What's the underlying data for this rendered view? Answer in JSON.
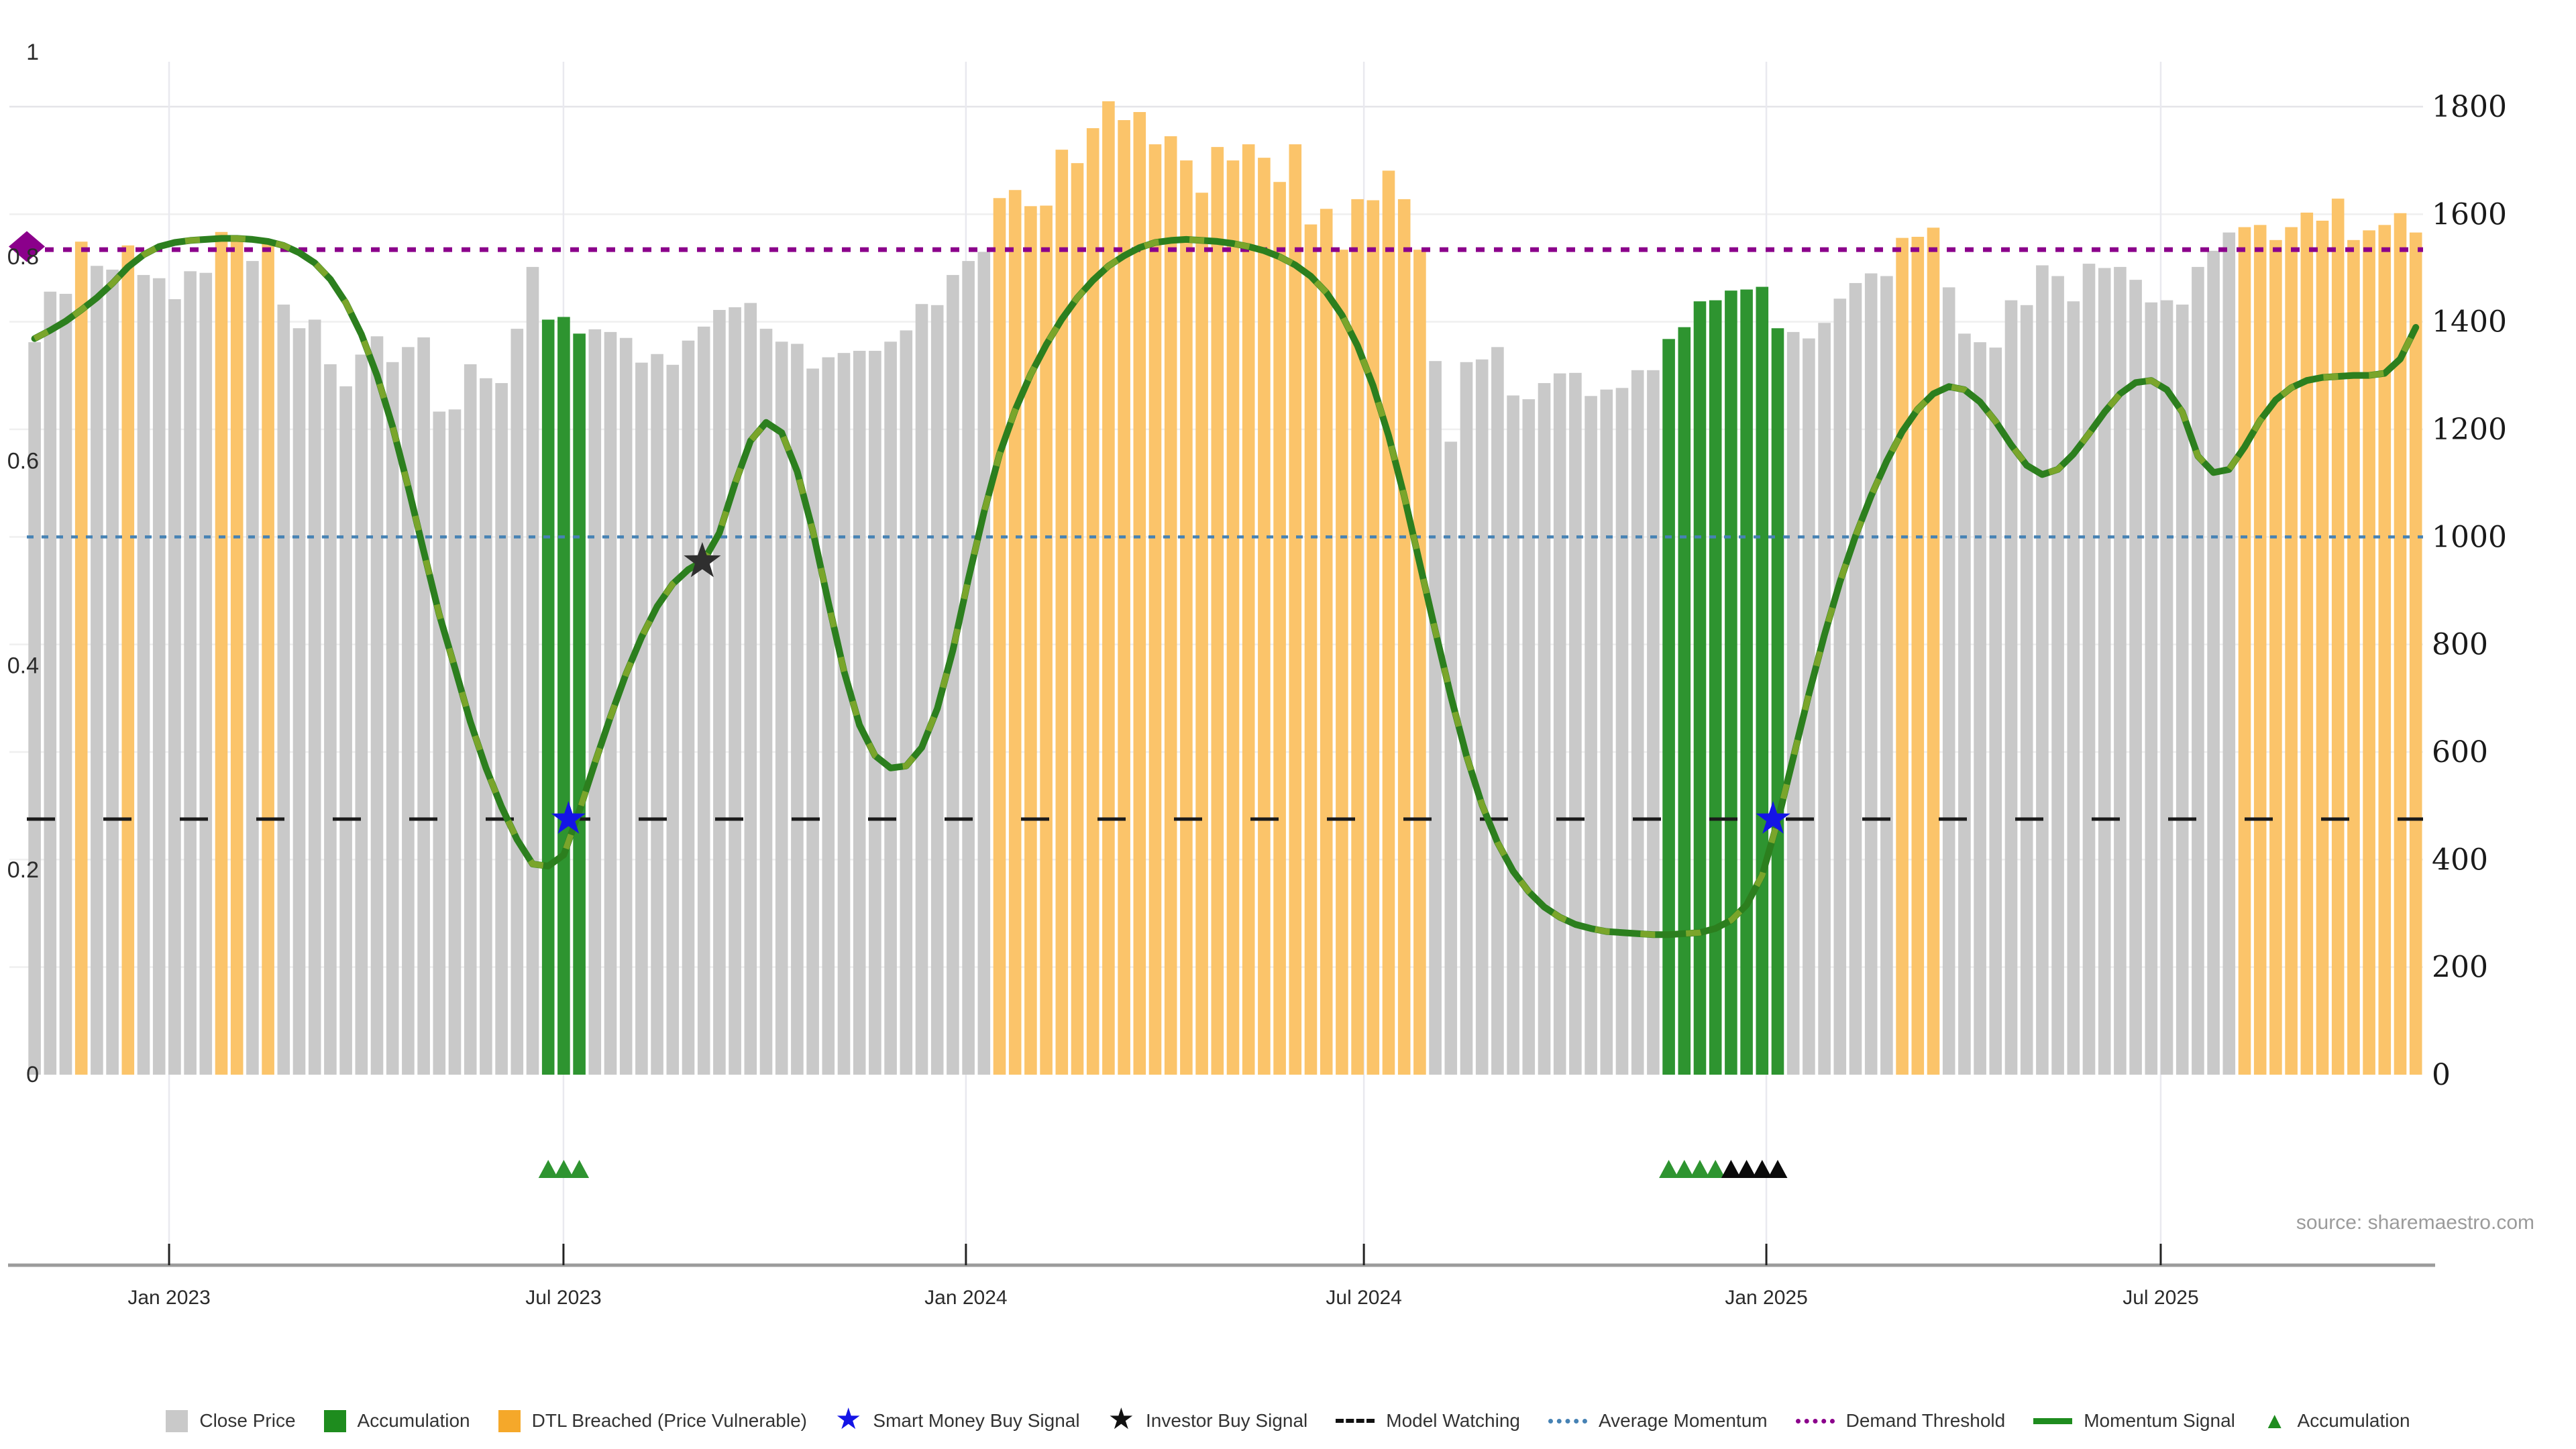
{
  "page": {
    "source_note": "source: sharemaestro.com"
  },
  "colors": {
    "close_price_bar": "#c9c9c9",
    "accumulation_bar": "#2e9430",
    "dtl_breached_bar": "#fbc46a",
    "momentum_base": "#2c7f1e",
    "momentum_dash": "#7aa52b",
    "demand_threshold": "#8b008b",
    "average_momentum": "#4682b4",
    "model_watching": "#1a1a1a",
    "smart_money_star": "#1414e6",
    "investor_star": "#2f2f2f",
    "legend_green": "#1e8c1e",
    "legend_orange": "#f5a82a",
    "grid_v": "#e9e9ef",
    "grid_h": "#efefef",
    "grid_h_top": "#e4e4e8",
    "axis_line": "#9b9b9b",
    "tick_mark": "#222222",
    "axis_text": "#2b2b2b",
    "source_text": "#9b9b9b"
  },
  "legend": {
    "items": [
      {
        "glyph": "square",
        "color": "#c9c9c9",
        "label": "Close Price"
      },
      {
        "glyph": "square",
        "color": "#1e8c1e",
        "label": "Accumulation"
      },
      {
        "glyph": "square",
        "color": "#f5a82a",
        "label": "DTL Breached (Price Vulnerable)"
      },
      {
        "glyph": "star",
        "color": "#1414e6",
        "label": "Smart Money Buy Signal"
      },
      {
        "glyph": "star",
        "color": "#111111",
        "label": "Investor Buy Signal"
      },
      {
        "glyph": "dash-line",
        "color": "#111111",
        "label": "Model Watching"
      },
      {
        "glyph": "dot-line",
        "color": "#4682b4",
        "label": "Average Momentum"
      },
      {
        "glyph": "dot-line",
        "color": "#8b008b",
        "label": "Demand Threshold"
      },
      {
        "glyph": "solid-line",
        "color": "#1e8c1e",
        "label": "Momentum Signal"
      },
      {
        "glyph": "triangle",
        "color": "#1e8c1e",
        "label": "Accumulation"
      }
    ]
  },
  "chart_data": {
    "type": "bar",
    "title": "",
    "xlabel": "",
    "ylabel_left": "",
    "ylabel_right": "",
    "left_axis": {
      "min": 0,
      "max": 1,
      "ticks": [
        0,
        0.2,
        0.4,
        0.6,
        0.8,
        1
      ],
      "tick_labels": [
        "0",
        "0.2",
        "0.4",
        "0.6",
        "0.8",
        "1"
      ]
    },
    "right_axis": {
      "min": 0,
      "max": 1800,
      "ticks": [
        0,
        200,
        400,
        600,
        800,
        1000,
        1200,
        1400,
        1600,
        1800
      ],
      "tick_labels": [
        "0",
        "200",
        "400",
        "600",
        "800",
        "1000",
        "1200",
        "1400",
        "1600",
        "1800"
      ]
    },
    "x_ticks": [
      {
        "label": "Jan 2023",
        "pos": 9.14
      },
      {
        "label": "Jul 2023",
        "pos": 34.48
      },
      {
        "label": "Jan 2024",
        "pos": 60.34
      },
      {
        "label": "Jul 2024",
        "pos": 85.91
      },
      {
        "label": "Jan 2025",
        "pos": 111.77
      },
      {
        "label": "Jul 2025",
        "pos": 137.11
      }
    ],
    "bars": {
      "series_name": "Close Price (weekly)",
      "axis": "right",
      "color_key": {
        "g": "close_price_bar",
        "n": "accumulation_bar",
        "o": "dtl_breached_bar"
      },
      "colors": "gggoggogggggoogogggggggggggggggggnnnggggggggggggggggggggggggggoooooooooooooooooooooooooooogggggggggggggggnnnnnnnngggggggooogggggggggggggggggggooooooooooooo",
      "values": [
        1362,
        1456,
        1452,
        1549,
        1504,
        1497,
        1542,
        1487,
        1481,
        1442,
        1494,
        1491,
        1567,
        1554,
        1513,
        1552,
        1432,
        1388,
        1404,
        1321,
        1280,
        1339,
        1373,
        1325,
        1353,
        1371,
        1233,
        1237,
        1321,
        1295,
        1286,
        1387,
        1502,
        1404,
        1409,
        1378,
        1386,
        1381,
        1370,
        1324,
        1340,
        1320,
        1365,
        1391,
        1422,
        1427,
        1435,
        1387,
        1363,
        1359,
        1313,
        1334,
        1342,
        1346,
        1346,
        1363,
        1384,
        1433,
        1431,
        1487,
        1513,
        1530,
        1630,
        1645,
        1615,
        1616,
        1720,
        1695,
        1760,
        1810,
        1775,
        1790,
        1730,
        1745,
        1700,
        1640,
        1725,
        1700,
        1730,
        1705,
        1660,
        1730,
        1581,
        1610,
        1534,
        1628,
        1626,
        1681,
        1628,
        1534,
        1327,
        1177,
        1325,
        1330,
        1353,
        1263,
        1256,
        1286,
        1304,
        1305,
        1262,
        1274,
        1277,
        1310,
        1310,
        1368,
        1390,
        1438,
        1440,
        1458,
        1460,
        1465,
        1388,
        1381,
        1369,
        1398,
        1443,
        1472,
        1490,
        1485,
        1556,
        1558,
        1575,
        1464,
        1378,
        1362,
        1352,
        1440,
        1431,
        1505,
        1485,
        1438,
        1508,
        1500,
        1502,
        1478,
        1436,
        1440,
        1432,
        1502,
        1532,
        1566,
        1576,
        1580,
        1552,
        1576,
        1603,
        1588,
        1629,
        1552,
        1570,
        1580,
        1602,
        1566
      ]
    },
    "momentum_signal": {
      "series_name": "Momentum Signal",
      "axis": "left",
      "values": [
        0.72,
        0.728,
        0.737,
        0.748,
        0.76,
        0.774,
        0.79,
        0.802,
        0.81,
        0.814,
        0.816,
        0.817,
        0.818,
        0.818,
        0.817,
        0.815,
        0.811,
        0.804,
        0.794,
        0.778,
        0.755,
        0.724,
        0.684,
        0.634,
        0.575,
        0.512,
        0.45,
        0.398,
        0.345,
        0.3,
        0.262,
        0.23,
        0.206,
        0.204,
        0.215,
        0.258,
        0.305,
        0.35,
        0.392,
        0.428,
        0.458,
        0.48,
        0.494,
        0.503,
        0.53,
        0.578,
        0.62,
        0.638,
        0.628,
        0.59,
        0.532,
        0.462,
        0.395,
        0.342,
        0.312,
        0.3,
        0.302,
        0.32,
        0.358,
        0.415,
        0.485,
        0.55,
        0.607,
        0.65,
        0.685,
        0.714,
        0.739,
        0.76,
        0.777,
        0.791,
        0.801,
        0.809,
        0.814,
        0.816,
        0.817,
        0.816,
        0.815,
        0.813,
        0.81,
        0.806,
        0.8,
        0.792,
        0.781,
        0.765,
        0.743,
        0.713,
        0.674,
        0.625,
        0.566,
        0.5,
        0.434,
        0.37,
        0.312,
        0.264,
        0.227,
        0.199,
        0.179,
        0.164,
        0.154,
        0.147,
        0.143,
        0.14,
        0.139,
        0.138,
        0.137,
        0.137,
        0.138,
        0.139,
        0.143,
        0.151,
        0.166,
        0.195,
        0.248,
        0.31,
        0.372,
        0.43,
        0.482,
        0.527,
        0.566,
        0.6,
        0.629,
        0.651,
        0.666,
        0.673,
        0.67,
        0.658,
        0.639,
        0.616,
        0.596,
        0.587,
        0.592,
        0.607,
        0.627,
        0.648,
        0.666,
        0.677,
        0.679,
        0.67,
        0.648,
        0.605,
        0.589,
        0.592,
        0.614,
        0.64,
        0.66,
        0.672,
        0.679,
        0.682,
        0.683,
        0.684,
        0.684,
        0.686,
        0.7,
        0.731
      ]
    },
    "reference_lines": {
      "demand_threshold": {
        "value": 0.81,
        "axis": "left",
        "style": "dotted",
        "color": "#8b008b"
      },
      "average_momentum": {
        "value": 0.526,
        "axis": "left",
        "style": "dotted",
        "color": "#4682b4"
      },
      "model_watching": {
        "value": 0.25,
        "axis": "left",
        "style": "dashed",
        "color": "#1a1a1a"
      }
    },
    "markers": {
      "demand_threshold_diamond": {
        "pos": 0.0,
        "value": 0.81
      },
      "smart_money_buy_signals": [
        {
          "pos": 34.3,
          "value": 0.25
        },
        {
          "pos": 111.7,
          "value": 0.25
        }
      ],
      "investor_buy_signal": {
        "pos": 42.9,
        "value": 0.502
      }
    },
    "accumulation_triangles": {
      "green_positions": [
        33,
        34,
        35,
        105,
        106,
        107,
        108
      ],
      "black_positions": [
        109,
        110,
        111,
        112
      ]
    }
  }
}
